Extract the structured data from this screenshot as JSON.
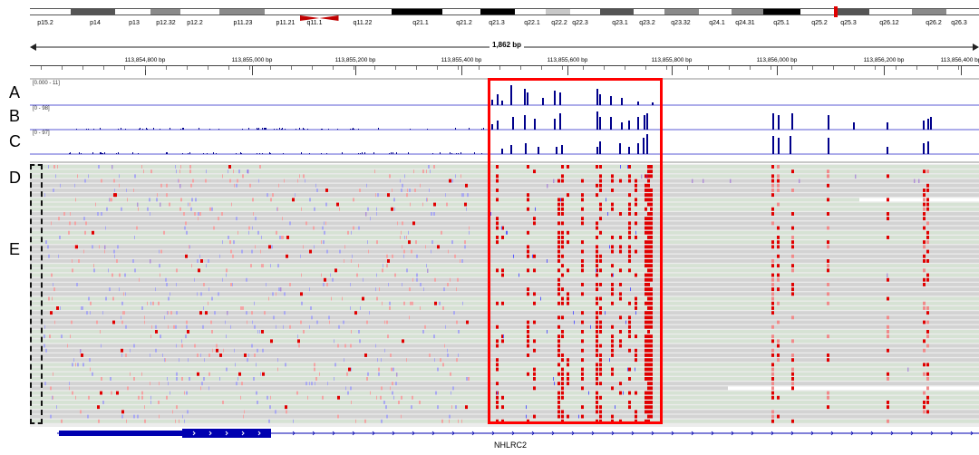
{
  "ideogram": {
    "bands": [
      {
        "label": "p15.2",
        "stain": "gneg"
      },
      {
        "label": "p14",
        "stain": "gpos75"
      },
      {
        "label": "p13",
        "stain": "gneg"
      },
      {
        "label": "p12.32",
        "stain": "gpos50"
      },
      {
        "label": "p12.2",
        "stain": "gneg"
      },
      {
        "label": "p11.23",
        "stain": "gpos50"
      },
      {
        "label": "p11.21",
        "stain": "gneg"
      },
      {
        "label": "q11.1",
        "stain": "acen"
      },
      {
        "label": "q11.22",
        "stain": "gneg"
      },
      {
        "label": "q21.1",
        "stain": "gpos100"
      },
      {
        "label": "q21.2",
        "stain": "gneg"
      },
      {
        "label": "q21.3",
        "stain": "gpos100"
      },
      {
        "label": "q22.1",
        "stain": "gneg"
      },
      {
        "label": "q22.2",
        "stain": "gpos25"
      },
      {
        "label": "q22.3",
        "stain": "gneg"
      },
      {
        "label": "q23.1",
        "stain": "gpos75"
      },
      {
        "label": "q23.2",
        "stain": "gneg"
      },
      {
        "label": "q23.32",
        "stain": "gpos50"
      },
      {
        "label": "q24.1",
        "stain": "gneg"
      },
      {
        "label": "q24.31",
        "stain": "gpos50"
      },
      {
        "label": "q25.1",
        "stain": "gpos100"
      },
      {
        "label": "q25.2",
        "stain": "gneg"
      },
      {
        "label": "q25.3",
        "stain": "gpos75"
      },
      {
        "label": "q26.12",
        "stain": "gneg"
      },
      {
        "label": "q26.2",
        "stain": "gpos50"
      },
      {
        "label": "q26.3",
        "stain": "gneg"
      }
    ],
    "marker_color": "#e00000"
  },
  "ruler": {
    "span_label": "1,862 bp",
    "ticks": [
      "113,854,800 bp",
      "113,855,000 bp",
      "113,855,200 bp",
      "113,855,400 bp",
      "113,855,600 bp",
      "113,855,800 bp",
      "113,856,000 bp",
      "113,856,200 bp",
      "113,856,400 bp"
    ]
  },
  "panel_labels": [
    "A",
    "B",
    "C",
    "D",
    "E"
  ],
  "tracks": [
    {
      "name": "A",
      "range": "[0.000 - 11]"
    },
    {
      "name": "B",
      "range": "[0 - 98]"
    },
    {
      "name": "C",
      "range": "[0 - 97]"
    }
  ],
  "gene": {
    "name": "NHLRC2"
  },
  "colors": {
    "coverage": "#00008b",
    "mismatch_red": "#e00000",
    "mismatch_blue": "#5a5aff",
    "insertion": "#7a2dd9",
    "read_gray": "#d3d3d3",
    "read_green": "#d6e2d4",
    "highlight": "#ff0000",
    "gene": "#0000b0"
  }
}
